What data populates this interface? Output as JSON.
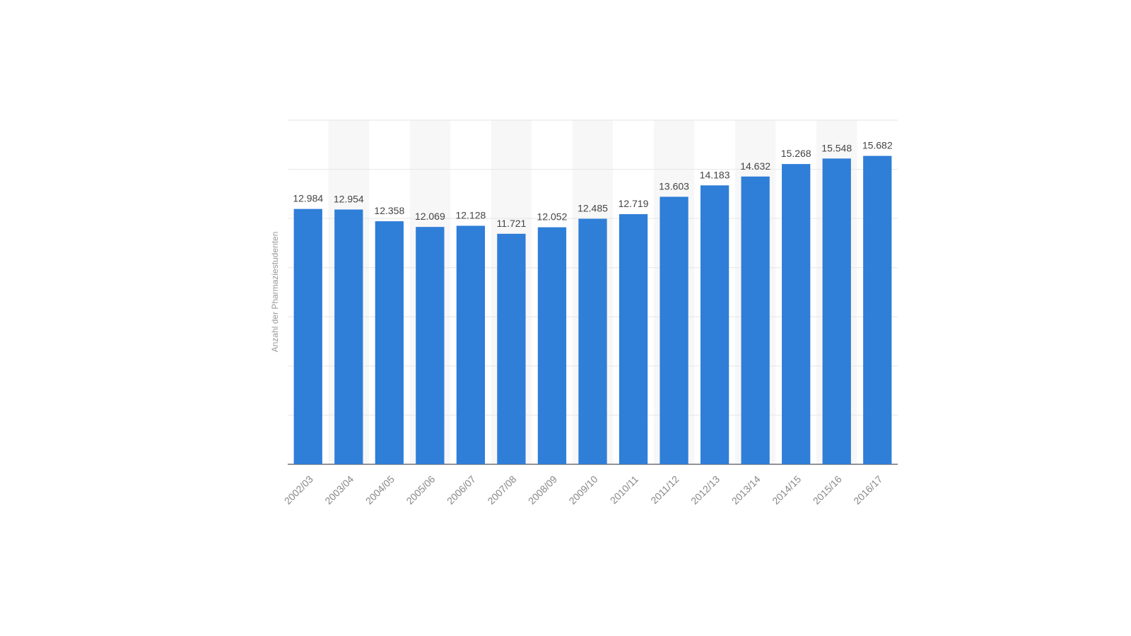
{
  "chart_data": {
    "type": "bar",
    "y_label": "Anzahl der Pharmaziestudenten",
    "categories": [
      "2002/03",
      "2003/04",
      "2004/05",
      "2005/06",
      "2006/07",
      "2007/08",
      "2008/09",
      "2009/10",
      "2010/11",
      "2011/12",
      "2012/13",
      "2013/14",
      "2014/15",
      "2015/16",
      "2016/17"
    ],
    "values": [
      12984,
      12954,
      12358,
      12069,
      12128,
      11721,
      12052,
      12485,
      12719,
      13603,
      14183,
      14632,
      15268,
      15548,
      15682
    ],
    "value_labels": [
      "12.984",
      "12.954",
      "12.358",
      "12.069",
      "12.128",
      "11.721",
      "12.052",
      "12.485",
      "12.719",
      "13.603",
      "14.183",
      "14.632",
      "15.268",
      "15.548",
      "15.682"
    ],
    "color": "#2f7ed8",
    "ylim": [
      0,
      17500
    ],
    "yticks": [
      0,
      2500,
      5000,
      7500,
      10000,
      12500,
      15000,
      17500
    ],
    "grid": true
  }
}
